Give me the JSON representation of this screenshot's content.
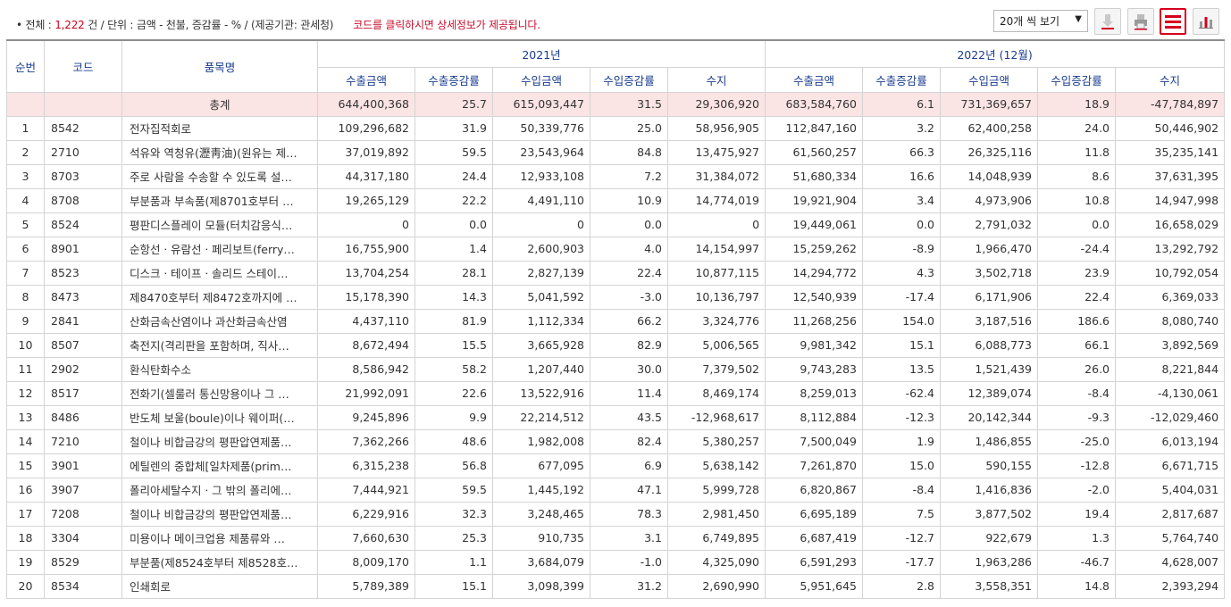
{
  "summary": {
    "total_label": "• 전체 : ",
    "total_count": "1,222",
    "total_unit": " 건  /  단위 : 금액 - 천불, 증감률 - %  /  (제공기관: 관세청)",
    "notice": "코드를 클릭하시면 상세정보가 제공됩니다."
  },
  "toolbar": {
    "per_page": "20개 씩 보기",
    "icons": [
      "excel-download-icon",
      "print-icon",
      "table-view-icon",
      "chart-view-icon"
    ]
  },
  "colors": {
    "accent": "#d6001c",
    "header_text": "#1a3c8f",
    "total_row": "#fbe4e4"
  },
  "table": {
    "col_seq": "순번",
    "col_code": "코드",
    "col_name": "품목명",
    "group1": "2021년",
    "group2": "2022년 (12월)",
    "sub": [
      "수출금액",
      "수출증감률",
      "수입금액",
      "수입증감률",
      "수지",
      "수출금액",
      "수출증감률",
      "수입금액",
      "수입증감률",
      "수지"
    ],
    "total": {
      "label": "총계",
      "values": [
        "644,400,368",
        "25.7",
        "615,093,447",
        "31.5",
        "29,306,920",
        "683,584,760",
        "6.1",
        "731,369,657",
        "18.9",
        "-47,784,897"
      ]
    },
    "rows": [
      {
        "seq": "1",
        "code": "8542",
        "name": "전자집적회로",
        "values": [
          "109,296,682",
          "31.9",
          "50,339,776",
          "25.0",
          "58,956,905",
          "112,847,160",
          "3.2",
          "62,400,258",
          "24.0",
          "50,446,902"
        ]
      },
      {
        "seq": "2",
        "code": "2710",
        "name": "석유와 역청유(瀝靑油)(원유는 제…",
        "values": [
          "37,019,892",
          "59.5",
          "23,543,964",
          "84.8",
          "13,475,927",
          "61,560,257",
          "66.3",
          "26,325,116",
          "11.8",
          "35,235,141"
        ]
      },
      {
        "seq": "3",
        "code": "8703",
        "name": "주로 사람을 수송할 수 있도록 설…",
        "values": [
          "44,317,180",
          "24.4",
          "12,933,108",
          "7.2",
          "31,384,072",
          "51,680,334",
          "16.6",
          "14,048,939",
          "8.6",
          "37,631,395"
        ]
      },
      {
        "seq": "4",
        "code": "8708",
        "name": "부분품과 부속품(제8701호부터 …",
        "values": [
          "19,265,129",
          "22.2",
          "4,491,110",
          "10.9",
          "14,774,019",
          "19,921,904",
          "3.4",
          "4,973,906",
          "10.8",
          "14,947,998"
        ]
      },
      {
        "seq": "5",
        "code": "8524",
        "name": "평판디스플레이 모듈(터치감응식…",
        "values": [
          "0",
          "0.0",
          "0",
          "0.0",
          "0",
          "19,449,061",
          "0.0",
          "2,791,032",
          "0.0",
          "16,658,029"
        ]
      },
      {
        "seq": "6",
        "code": "8901",
        "name": "순항선ㆍ유람선ㆍ페리보트(ferry…",
        "values": [
          "16,755,900",
          "1.4",
          "2,600,903",
          "4.0",
          "14,154,997",
          "15,259,262",
          "-8.9",
          "1,966,470",
          "-24.4",
          "13,292,792"
        ]
      },
      {
        "seq": "7",
        "code": "8523",
        "name": "디스크ㆍ테이프ㆍ솔리드 스테이…",
        "values": [
          "13,704,254",
          "28.1",
          "2,827,139",
          "22.4",
          "10,877,115",
          "14,294,772",
          "4.3",
          "3,502,718",
          "23.9",
          "10,792,054"
        ]
      },
      {
        "seq": "8",
        "code": "8473",
        "name": "제8470호부터 제8472호까지에 …",
        "values": [
          "15,178,390",
          "14.3",
          "5,041,592",
          "-3.0",
          "10,136,797",
          "12,540,939",
          "-17.4",
          "6,171,906",
          "22.4",
          "6,369,033"
        ]
      },
      {
        "seq": "9",
        "code": "2841",
        "name": "산화금속산염이나 과산화금속산염",
        "values": [
          "4,437,110",
          "81.9",
          "1,112,334",
          "66.2",
          "3,324,776",
          "11,268,256",
          "154.0",
          "3,187,516",
          "186.6",
          "8,080,740"
        ]
      },
      {
        "seq": "10",
        "code": "8507",
        "name": "축전지(격리판을 포함하며, 직사…",
        "values": [
          "8,672,494",
          "15.5",
          "3,665,928",
          "82.9",
          "5,006,565",
          "9,981,342",
          "15.1",
          "6,088,773",
          "66.1",
          "3,892,569"
        ]
      },
      {
        "seq": "11",
        "code": "2902",
        "name": "환식탄화수소",
        "values": [
          "8,586,942",
          "58.2",
          "1,207,440",
          "30.0",
          "7,379,502",
          "9,743,283",
          "13.5",
          "1,521,439",
          "26.0",
          "8,221,844"
        ]
      },
      {
        "seq": "12",
        "code": "8517",
        "name": "전화기(셀룰러 통신망용이나 그 …",
        "values": [
          "21,992,091",
          "22.6",
          "13,522,916",
          "11.4",
          "8,469,174",
          "8,259,013",
          "-62.4",
          "12,389,074",
          "-8.4",
          "-4,130,061"
        ]
      },
      {
        "seq": "13",
        "code": "8486",
        "name": "반도체 보울(boule)이나 웨이퍼(…",
        "values": [
          "9,245,896",
          "9.9",
          "22,214,512",
          "43.5",
          "-12,968,617",
          "8,112,884",
          "-12.3",
          "20,142,344",
          "-9.3",
          "-12,029,460"
        ]
      },
      {
        "seq": "14",
        "code": "7210",
        "name": "철이나 비합금강의 평판압연제품…",
        "values": [
          "7,362,266",
          "48.6",
          "1,982,008",
          "82.4",
          "5,380,257",
          "7,500,049",
          "1.9",
          "1,486,855",
          "-25.0",
          "6,013,194"
        ]
      },
      {
        "seq": "15",
        "code": "3901",
        "name": "에틸렌의 중합체[일차제품(prim…",
        "values": [
          "6,315,238",
          "56.8",
          "677,095",
          "6.9",
          "5,638,142",
          "7,261,870",
          "15.0",
          "590,155",
          "-12.8",
          "6,671,715"
        ]
      },
      {
        "seq": "16",
        "code": "3907",
        "name": "폴리아세탈수지ㆍ그 밖의 폴리에…",
        "values": [
          "7,444,921",
          "59.5",
          "1,445,192",
          "47.1",
          "5,999,728",
          "6,820,867",
          "-8.4",
          "1,416,836",
          "-2.0",
          "5,404,031"
        ]
      },
      {
        "seq": "17",
        "code": "7208",
        "name": "철이나 비합금강의 평판압연제품…",
        "values": [
          "6,229,916",
          "32.3",
          "3,248,465",
          "78.3",
          "2,981,450",
          "6,695,189",
          "7.5",
          "3,877,502",
          "19.4",
          "2,817,687"
        ]
      },
      {
        "seq": "18",
        "code": "3304",
        "name": "미용이나 메이크업용 제품류와 …",
        "values": [
          "7,660,630",
          "25.3",
          "910,735",
          "3.1",
          "6,749,895",
          "6,687,419",
          "-12.7",
          "922,679",
          "1.3",
          "5,764,740"
        ]
      },
      {
        "seq": "19",
        "code": "8529",
        "name": "부분품(제8524호부터 제8528호…",
        "values": [
          "8,009,170",
          "1.1",
          "3,684,079",
          "-1.0",
          "4,325,090",
          "6,591,293",
          "-17.7",
          "1,963,286",
          "-46.7",
          "4,628,007"
        ]
      },
      {
        "seq": "20",
        "code": "8534",
        "name": "인쇄회로",
        "values": [
          "5,789,389",
          "15.1",
          "3,098,399",
          "31.2",
          "2,690,990",
          "5,951,645",
          "2.8",
          "3,558,351",
          "14.8",
          "2,393,294"
        ]
      }
    ]
  }
}
